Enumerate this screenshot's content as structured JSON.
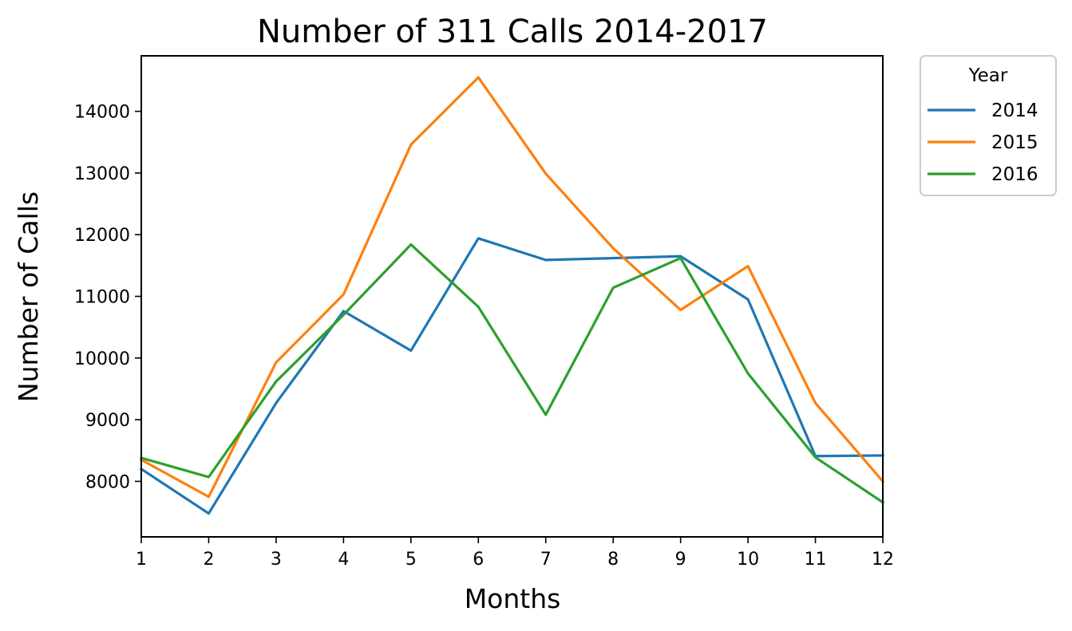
{
  "chart_data": {
    "type": "line",
    "title": "Number of 311 Calls 2014-2017",
    "xlabel": "Months",
    "ylabel": "Number of Calls",
    "x": [
      1,
      2,
      3,
      4,
      5,
      6,
      7,
      8,
      9,
      10,
      11,
      12
    ],
    "xlim": [
      1,
      12
    ],
    "ylim": [
      7100,
      14900
    ],
    "yticks": [
      8000,
      9000,
      10000,
      11000,
      12000,
      13000,
      14000
    ],
    "grid": false,
    "legend": {
      "title": "Year",
      "placement": "outside-top-right"
    },
    "series": [
      {
        "name": "2014",
        "color": "#1f77b4",
        "values": [
          8200,
          7480,
          9270,
          10760,
          10120,
          11940,
          11590,
          11620,
          11650,
          10950,
          8410,
          8420
        ]
      },
      {
        "name": "2015",
        "color": "#ff7f0e",
        "values": [
          8350,
          7750,
          9930,
          11030,
          13460,
          14550,
          12990,
          11780,
          10780,
          11490,
          9270,
          8000
        ]
      },
      {
        "name": "2016",
        "color": "#2ca02c",
        "values": [
          8380,
          8070,
          9620,
          10700,
          11840,
          10830,
          9080,
          11140,
          11620,
          9750,
          8390,
          7660
        ]
      }
    ]
  }
}
